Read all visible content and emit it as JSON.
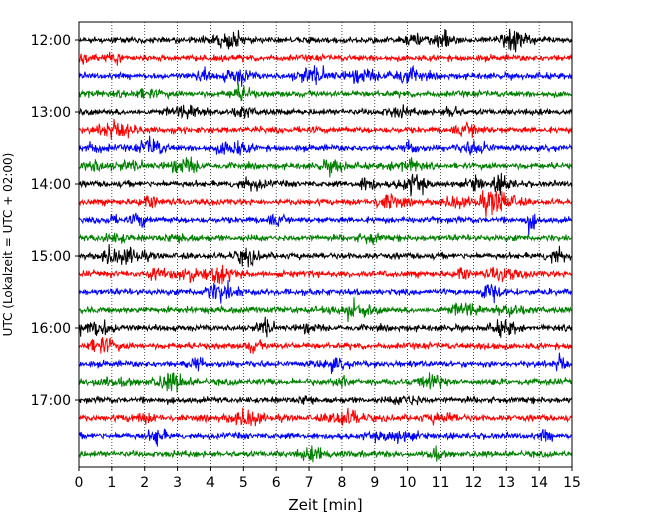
{
  "chart_data": {
    "type": "line",
    "title": "",
    "xlabel": "Zeit  [min]",
    "ylabel": "UTC (Lokalzeit = UTC + 02:00)",
    "xlim": [
      0,
      15
    ],
    "x_ticks": [
      "0",
      "1",
      "2",
      "3",
      "4",
      "5",
      "6",
      "7",
      "8",
      "9",
      "10",
      "11",
      "12",
      "13",
      "14",
      "15"
    ],
    "y_ticks": [
      "12:00",
      "13:00",
      "14:00",
      "15:00",
      "16:00",
      "17:00"
    ],
    "grid": "vertical dotted at each minute",
    "legend": "none",
    "trace_interval_minutes": 15,
    "series_colors": [
      "#000000",
      "#ff0000",
      "#0000ff",
      "#008000"
    ],
    "traces": [
      {
        "start": "12:00",
        "color": "#000000"
      },
      {
        "start": "12:15",
        "color": "#ff0000"
      },
      {
        "start": "12:30",
        "color": "#0000ff"
      },
      {
        "start": "12:45",
        "color": "#008000"
      },
      {
        "start": "13:00",
        "color": "#000000"
      },
      {
        "start": "13:15",
        "color": "#ff0000"
      },
      {
        "start": "13:30",
        "color": "#0000ff"
      },
      {
        "start": "13:45",
        "color": "#008000"
      },
      {
        "start": "14:00",
        "color": "#000000"
      },
      {
        "start": "14:15",
        "color": "#ff0000"
      },
      {
        "start": "14:30",
        "color": "#0000ff"
      },
      {
        "start": "14:45",
        "color": "#008000"
      },
      {
        "start": "15:00",
        "color": "#000000"
      },
      {
        "start": "15:15",
        "color": "#ff0000"
      },
      {
        "start": "15:30",
        "color": "#0000ff"
      },
      {
        "start": "15:45",
        "color": "#008000"
      },
      {
        "start": "16:00",
        "color": "#000000"
      },
      {
        "start": "16:15",
        "color": "#ff0000"
      },
      {
        "start": "16:30",
        "color": "#0000ff"
      },
      {
        "start": "16:45",
        "color": "#008000"
      },
      {
        "start": "17:00",
        "color": "#000000"
      },
      {
        "start": "17:15",
        "color": "#ff0000"
      },
      {
        "start": "17:30",
        "color": "#0000ff"
      },
      {
        "start": "17:45",
        "color": "#008000"
      }
    ]
  }
}
